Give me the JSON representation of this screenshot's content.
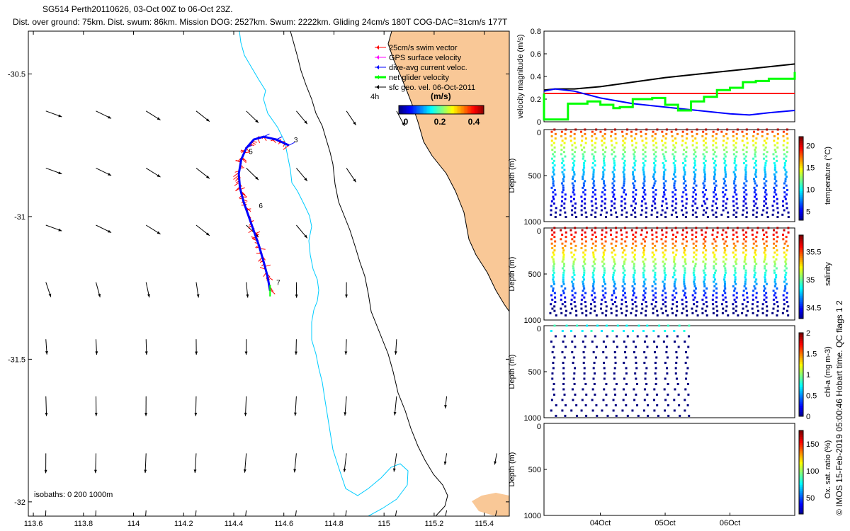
{
  "header": {
    "line1": "SG514 Perth20110626, 03-Oct 00Z to 06-Oct 23Z.",
    "line2": "Dist. over ground: 75km. Dist. swum: 86km. Mission DOG: 2527km. Swum: 2222km. Gliding 24cm/s 180T COG-DAC=31cm/s 177T"
  },
  "credit": "© IMOS 15-Feb-2019 05:00:46 Hobart time. QC flags 1 2",
  "colors": {
    "land": "#f9c897",
    "isobath_200": "#00ccff",
    "isobath_1000": "#000000",
    "track_red": "#ff0000",
    "track_blue": "#0000ff",
    "green": "#00ff00"
  },
  "chart_data": [
    {
      "type": "map",
      "xticks": [
        "113.6",
        "113.8",
        "114",
        "114.2",
        "114.4",
        "114.6",
        "114.8",
        "115",
        "115.2",
        "115.4"
      ],
      "yticks": [
        "-30.5",
        "-31",
        "-31.5",
        "-32"
      ],
      "xlim": [
        113.58,
        115.5
      ],
      "ylim": [
        -32.05,
        -30.35
      ],
      "legend": [
        {
          "label": "25cm/s swim vector",
          "color": "#ff0000"
        },
        {
          "label": "GPS surface velocity",
          "color": "#ff00ff"
        },
        {
          "label": "dive-avg current veloc.",
          "color": "#0000ff"
        },
        {
          "label": "net glider velocity",
          "color": "#00ff00"
        },
        {
          "label": "sfc geo. vel. 06-Oct-2011",
          "color": "#000000"
        }
      ],
      "scale_label": "4h",
      "colorbar": {
        "title": "(m/s)",
        "ticks": [
          "0",
          "0.2",
          "0.4"
        ],
        "range": [
          0,
          0.5
        ]
      },
      "isobath_label": "isobaths: 0   200  1000m",
      "track_labels": [
        {
          "text": "3",
          "lon": 114.64,
          "lat": -30.74
        },
        {
          "text": "5",
          "lon": 114.46,
          "lat": -30.78
        },
        {
          "text": "6",
          "lon": 114.5,
          "lat": -30.97
        },
        {
          "text": "7",
          "lon": 114.57,
          "lat": -31.24
        }
      ],
      "track": [
        [
          114.62,
          -30.75
        ],
        [
          114.57,
          -30.73
        ],
        [
          114.52,
          -30.72
        ],
        [
          114.48,
          -30.73
        ],
        [
          114.45,
          -30.76
        ],
        [
          114.43,
          -30.8
        ],
        [
          114.42,
          -30.85
        ],
        [
          114.425,
          -30.9
        ],
        [
          114.44,
          -30.95
        ],
        [
          114.46,
          -31.0
        ],
        [
          114.48,
          -31.05
        ],
        [
          114.5,
          -31.1
        ],
        [
          114.52,
          -31.16
        ],
        [
          114.535,
          -31.21
        ],
        [
          114.545,
          -31.26
        ]
      ]
    },
    {
      "type": "line",
      "ylabel": "velocity magnitude (m/s)",
      "ylim": [
        0,
        0.8
      ],
      "yticks": [
        "0",
        "0.2",
        "0.4",
        "0.6",
        "0.8"
      ],
      "series": [
        {
          "color": "#000000",
          "x": [
            0,
            0.3,
            0.6,
            1,
            1.5,
            2,
            2.5,
            3,
            3.5,
            4
          ],
          "values": [
            0.28,
            0.29,
            0.29,
            0.31,
            0.35,
            0.39,
            0.42,
            0.45,
            0.48,
            0.51
          ]
        },
        {
          "color": "#ff0000",
          "x": [
            0,
            4
          ],
          "values": [
            0.25,
            0.25
          ]
        },
        {
          "color": "#0000ff",
          "x": [
            0,
            0.3,
            0.6,
            1,
            1.5,
            2,
            2.5,
            3,
            3.3,
            3.6,
            4
          ],
          "values": [
            0.27,
            0.29,
            0.27,
            0.21,
            0.16,
            0.13,
            0.1,
            0.07,
            0.06,
            0.08,
            0.1
          ]
        },
        {
          "color": "#00ff00",
          "x": [
            0,
            0.05,
            0.1,
            0.4,
            0.5,
            0.8,
            1.0,
            1.2,
            1.3,
            1.5,
            1.8,
            2.0,
            2.2,
            2.4,
            2.6,
            2.8,
            3.0,
            3.2,
            3.4,
            3.6,
            3.8,
            4
          ],
          "values": [
            0.18,
            0.25,
            0.02,
            0.02,
            0.16,
            0.18,
            0.15,
            0.12,
            0.13,
            0.2,
            0.21,
            0.15,
            0.1,
            0.18,
            0.22,
            0.28,
            0.3,
            0.35,
            0.36,
            0.38,
            0.38,
            0.44
          ]
        }
      ]
    },
    {
      "type": "scatter",
      "ylabel": "Depth (m)",
      "ylim": [
        1000,
        0
      ],
      "yticks": [
        "0",
        "500",
        "1000"
      ],
      "colorbar_label": "temperature (°C)",
      "colorbar_ticks": [
        "5",
        "10",
        "15",
        "20"
      ],
      "colorbar_range": [
        3,
        22
      ],
      "n_dives": 24,
      "max_depth": 950
    },
    {
      "type": "scatter",
      "ylabel": "Depth (m)",
      "ylim": [
        1000,
        0
      ],
      "yticks": [
        "0",
        "500",
        "1000"
      ],
      "colorbar_label": "salinity",
      "colorbar_ticks": [
        "34.5",
        "35",
        "35.5"
      ],
      "colorbar_range": [
        34.3,
        35.8
      ],
      "n_dives": 24,
      "max_depth": 950
    },
    {
      "type": "scatter",
      "ylabel": "Depth (m)",
      "ylim": [
        1000,
        0
      ],
      "yticks": [
        "0",
        "500",
        "1000"
      ],
      "colorbar_label": "chl-a (mg m-3)",
      "colorbar_ticks": [
        "0",
        "0.5",
        "1",
        "1.5",
        "2"
      ],
      "colorbar_range": [
        0,
        2
      ],
      "n_dives": 14,
      "max_depth": 980
    },
    {
      "type": "scatter",
      "ylabel": "Depth (m)",
      "ylim": [
        1000,
        0
      ],
      "yticks": [
        "0",
        "500",
        "1000"
      ],
      "xticks": [
        "04Oct",
        "05Oct",
        "06Oct"
      ],
      "colorbar_label": "Ox. sat. ratio (%)",
      "colorbar_ticks": [
        "50",
        "100",
        "150"
      ],
      "colorbar_range": [
        20,
        175
      ]
    }
  ]
}
